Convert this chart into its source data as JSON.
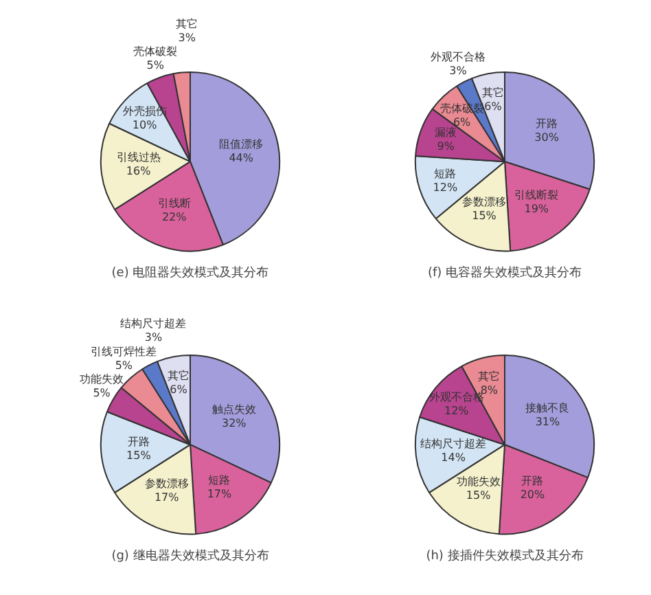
{
  "chart_data": [
    {
      "type": "pie",
      "title": "(e) 电阻器失效模式及其分布",
      "categories": [
        "阻值漂移",
        "引线断",
        "引线过热",
        "外壳损伤",
        "壳体破裂",
        "其它"
      ],
      "values": [
        44,
        22,
        16,
        10,
        5,
        3
      ],
      "colors": [
        "#a49ddb",
        "#d9629c",
        "#f4f1cc",
        "#d3e4f4",
        "#b8438f",
        "#ea8a93"
      ],
      "value_labels": [
        "44%",
        "22%",
        "16%",
        "10%",
        "5%",
        "3%"
      ]
    },
    {
      "type": "pie",
      "title": "(f) 电容器失效模式及其分布",
      "categories": [
        "开路",
        "引线断裂",
        "参数漂移",
        "短路",
        "漏液",
        "壳体破裂",
        "外观不合格",
        "其它"
      ],
      "values": [
        30,
        19,
        15,
        12,
        9,
        6,
        3,
        6
      ],
      "colors": [
        "#a49ddb",
        "#d9629c",
        "#f4f1cc",
        "#d3e4f4",
        "#b8438f",
        "#ea8a93",
        "#5b79c9",
        "#dfdff2"
      ],
      "value_labels": [
        "30%",
        "19%",
        "15%",
        "12%",
        "9%",
        "6%",
        "3%",
        "6%"
      ]
    },
    {
      "type": "pie",
      "title": "(g) 继电器失效模式及其分布",
      "categories": [
        "触点失效",
        "短路",
        "参数漂移",
        "开路",
        "功能失效",
        "引线可焊性差",
        "结构尺寸超差",
        "其它"
      ],
      "values": [
        32,
        17,
        17,
        15,
        5,
        5,
        3,
        6
      ],
      "colors": [
        "#a49ddb",
        "#d9629c",
        "#f4f1cc",
        "#d3e4f4",
        "#b8438f",
        "#ea8a93",
        "#5b79c9",
        "#dfdff2"
      ],
      "value_labels": [
        "32%",
        "17%",
        "17%",
        "15%",
        "5%",
        "5%",
        "3%",
        "6%"
      ]
    },
    {
      "type": "pie",
      "title": "(h) 接插件失效模式及其分布",
      "categories": [
        "接触不良",
        "开路",
        "功能失效",
        "结构尺寸超差",
        "外观不合格",
        "其它"
      ],
      "values": [
        31,
        20,
        15,
        14,
        12,
        8
      ],
      "colors": [
        "#a49ddb",
        "#d9629c",
        "#f4f1cc",
        "#d3e4f4",
        "#b8438f",
        "#ea8a93"
      ],
      "value_labels": [
        "31%",
        "20%",
        "15%",
        "14%",
        "12%",
        "8%"
      ]
    }
  ]
}
